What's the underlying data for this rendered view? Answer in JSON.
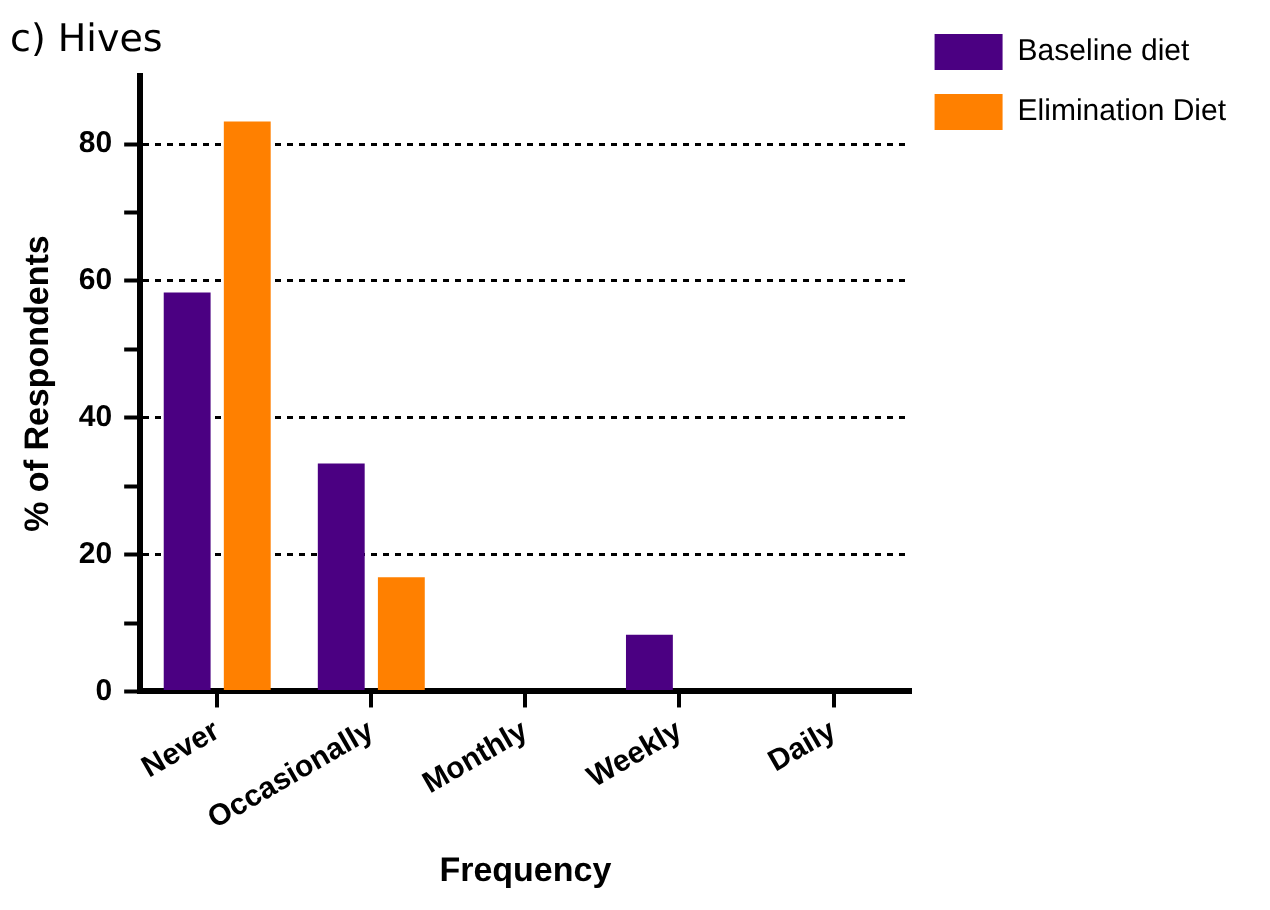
{
  "chart_data": {
    "type": "bar",
    "title": "c) Hives",
    "xlabel": "Frequency",
    "ylabel": "% of Respondents",
    "categories": [
      "Never",
      "Occasionally",
      "Monthly",
      "Weekly",
      "Daily"
    ],
    "series": [
      {
        "name": "Baseline diet",
        "color": "#4b0082",
        "values": [
          58.3,
          33.3,
          0,
          8.3,
          0
        ]
      },
      {
        "name": "Elimination Diet",
        "color": "#ff8000",
        "values": [
          83.3,
          16.7,
          0,
          0,
          0
        ]
      }
    ],
    "ylim": [
      0,
      90
    ],
    "yticks": [
      0,
      {
        "value": 10,
        "label": null
      },
      20,
      {
        "value": 30,
        "label": null
      },
      40,
      {
        "value": 50,
        "label": null
      },
      60,
      {
        "value": 70,
        "label": null
      },
      80
    ],
    "grid": "y",
    "legend": "top right"
  }
}
